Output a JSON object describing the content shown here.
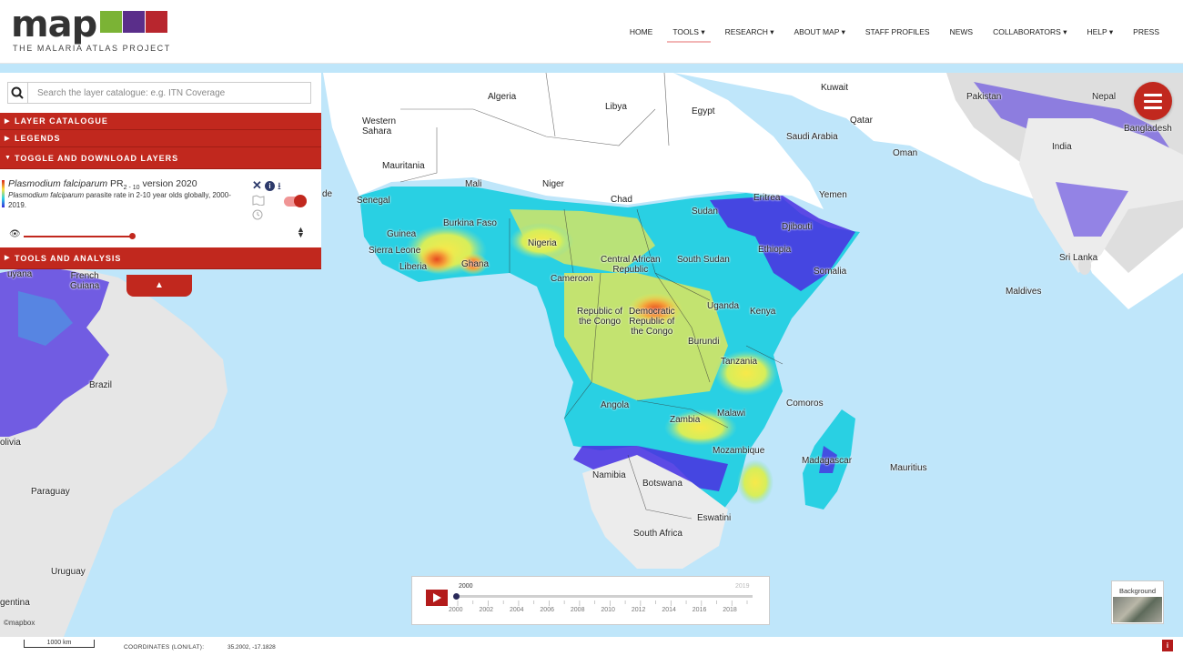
{
  "header": {
    "logo_word": "map",
    "logo_subtitle": "THE MALARIA ATLAS PROJECT",
    "logo_tile_colors": [
      "#7bb335",
      "#5a2e8a",
      "#b8262e"
    ]
  },
  "nav": {
    "items": [
      {
        "label": "HOME"
      },
      {
        "label": "TOOLS ▾",
        "active": true
      },
      {
        "label": "RESEARCH ▾"
      },
      {
        "label": "ABOUT MAP ▾"
      },
      {
        "label": "STAFF PROFILES"
      },
      {
        "label": "NEWS"
      },
      {
        "label": "COLLABORATORS ▾"
      },
      {
        "label": "HELP ▾"
      },
      {
        "label": "PRESS"
      }
    ]
  },
  "panel": {
    "search_placeholder": "Search the layer catalogue: e.g. ITN Coverage",
    "sections": {
      "layer_catalogue": "LAYER CATALOGUE",
      "legends": "LEGENDS",
      "toggle_download": "TOGGLE AND DOWNLOAD LAYERS",
      "tools_analysis": "TOOLS AND ANALYSIS"
    },
    "layer": {
      "title_italic": "Plasmodium falciparum",
      "title_rest": " PR",
      "title_sub": "2 - 10",
      "title_version": " version 2020",
      "desc_italic": "Plasmodium falciparum",
      "desc_rest": " parasite rate in 2-10 year olds globally, 2000-2019.",
      "opacity": 1.0,
      "visible": true
    },
    "icons": [
      "close-icon",
      "info-icon",
      "download-icon",
      "map-icon",
      "clock-icon",
      "eye-icon",
      "sort-icon",
      "search-icon"
    ]
  },
  "map": {
    "labels": {
      "algeria": "Algeria",
      "libya": "Libya",
      "egypt": "Egypt",
      "kuwait": "Kuwait",
      "pakistan": "Pakistan",
      "nepal": "Nepal",
      "bangladesh": "Bangladesh",
      "india": "India",
      "qatar": "Qatar",
      "saudi": "Saudi Arabia",
      "oman": "Oman",
      "western_sahara": "Western\nSahara",
      "mauritania": "Mauritania",
      "mali": "Mali",
      "niger": "Niger",
      "chad": "Chad",
      "sudan": "Sudan",
      "eritrea": "Eritrea",
      "yemen": "Yemen",
      "djibouti": "Djibouti",
      "senegal": "Senegal",
      "burkina": "Burkina Faso",
      "guinea": "Guinea",
      "sierra_leone": "Sierra Leone",
      "liberia": "Liberia",
      "ghana": "Ghana",
      "nigeria": "Nigeria",
      "car": "Central African\nRepublic",
      "south_sudan": "South Sudan",
      "ethiopia": "Ethiopia",
      "somalia": "Somalia",
      "sri_lanka": "Sri Lanka",
      "maldives": "Maldives",
      "cameroon": "Cameroon",
      "french_guiana": "French\nGuiana",
      "uganda": "Uganda",
      "kenya": "Kenya",
      "rep_congo": "Republic of\nthe Congo",
      "drc": "Democratic\nRepublic of\nthe Congo",
      "burundi": "Burundi",
      "tanzania": "Tanzania",
      "brazil": "Brazil",
      "angola": "Angola",
      "comoros": "Comoros",
      "zambia": "Zambia",
      "malawi": "Malawi",
      "mozambique": "Mozambique",
      "madagascar": "Madagascar",
      "mauritius": "Mauritius",
      "bolivia": "olivia",
      "namibia": "Namibia",
      "botswana": "Botswana",
      "paraguay": "Paraguay",
      "eswatini": "Eswatini",
      "south_africa": "South Africa",
      "uruguay": "Uruguay",
      "argentina": "gentina",
      "de_fragment": "de",
      "guyana_fragment": "uyana"
    },
    "colors": {
      "ocean": "#bfe6fa",
      "land_gray": "#e6e6e6",
      "high": "#e64a1f",
      "mid": "#f7e94a",
      "low": "#29d0e3",
      "verylow": "#4a2ee0"
    }
  },
  "timeline": {
    "start": "2000",
    "end": "2019",
    "current_year": 2000,
    "years": [
      "2000",
      "2002",
      "2004",
      "2006",
      "2008",
      "2010",
      "2012",
      "2014",
      "2016",
      "2018"
    ]
  },
  "background": {
    "label": "Background"
  },
  "attribution": "©mapbox",
  "footer": {
    "scale": "1000 km",
    "coords_label": "COORDINATES (LON/LAT):",
    "coords_value": "35.2002, -17.1828",
    "info": "i"
  }
}
